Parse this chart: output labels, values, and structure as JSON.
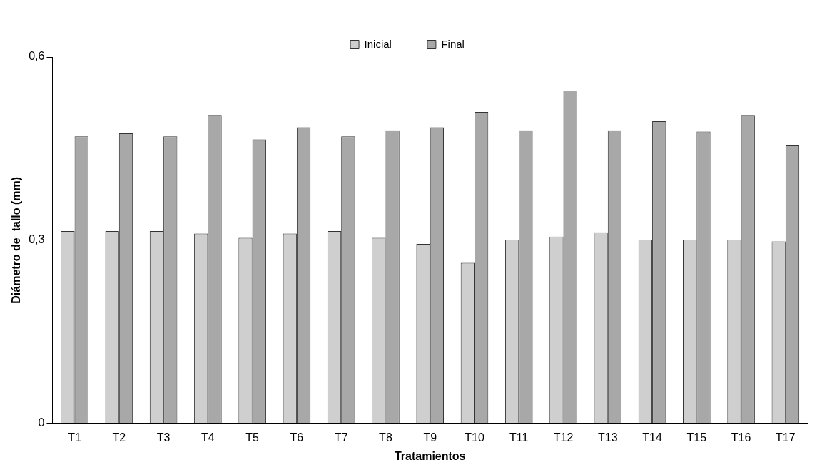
{
  "chart_data": {
    "type": "bar",
    "xlabel": "Tratamientos",
    "ylabel": "Diámetro de  tallo (mm)",
    "categories": [
      "T1",
      "T2",
      "T3",
      "T4",
      "T5",
      "T6",
      "T7",
      "T8",
      "T9",
      "T10",
      "T11",
      "T12",
      "T13",
      "T14",
      "T15",
      "T16",
      "T17"
    ],
    "series": [
      {
        "name": "Inicial",
        "color": "#cfcfcf",
        "values": [
          0.315,
          0.315,
          0.315,
          0.311,
          0.304,
          0.311,
          0.315,
          0.304,
          0.294,
          0.263,
          0.301,
          0.306,
          0.313,
          0.301,
          0.301,
          0.301,
          0.298
        ]
      },
      {
        "name": "Final",
        "color": "#a8a8a8",
        "values": [
          0.47,
          0.475,
          0.47,
          0.505,
          0.465,
          0.485,
          0.47,
          0.48,
          0.485,
          0.51,
          0.48,
          0.545,
          0.48,
          0.495,
          0.478,
          0.505,
          0.455
        ]
      }
    ],
    "ylim": [
      0,
      0.6
    ],
    "yticks": [
      0,
      {
        "value": 0.3,
        "label": "0,3"
      },
      {
        "value": 0.6,
        "label": "0,6"
      }
    ],
    "grid": false,
    "legend": "top"
  }
}
